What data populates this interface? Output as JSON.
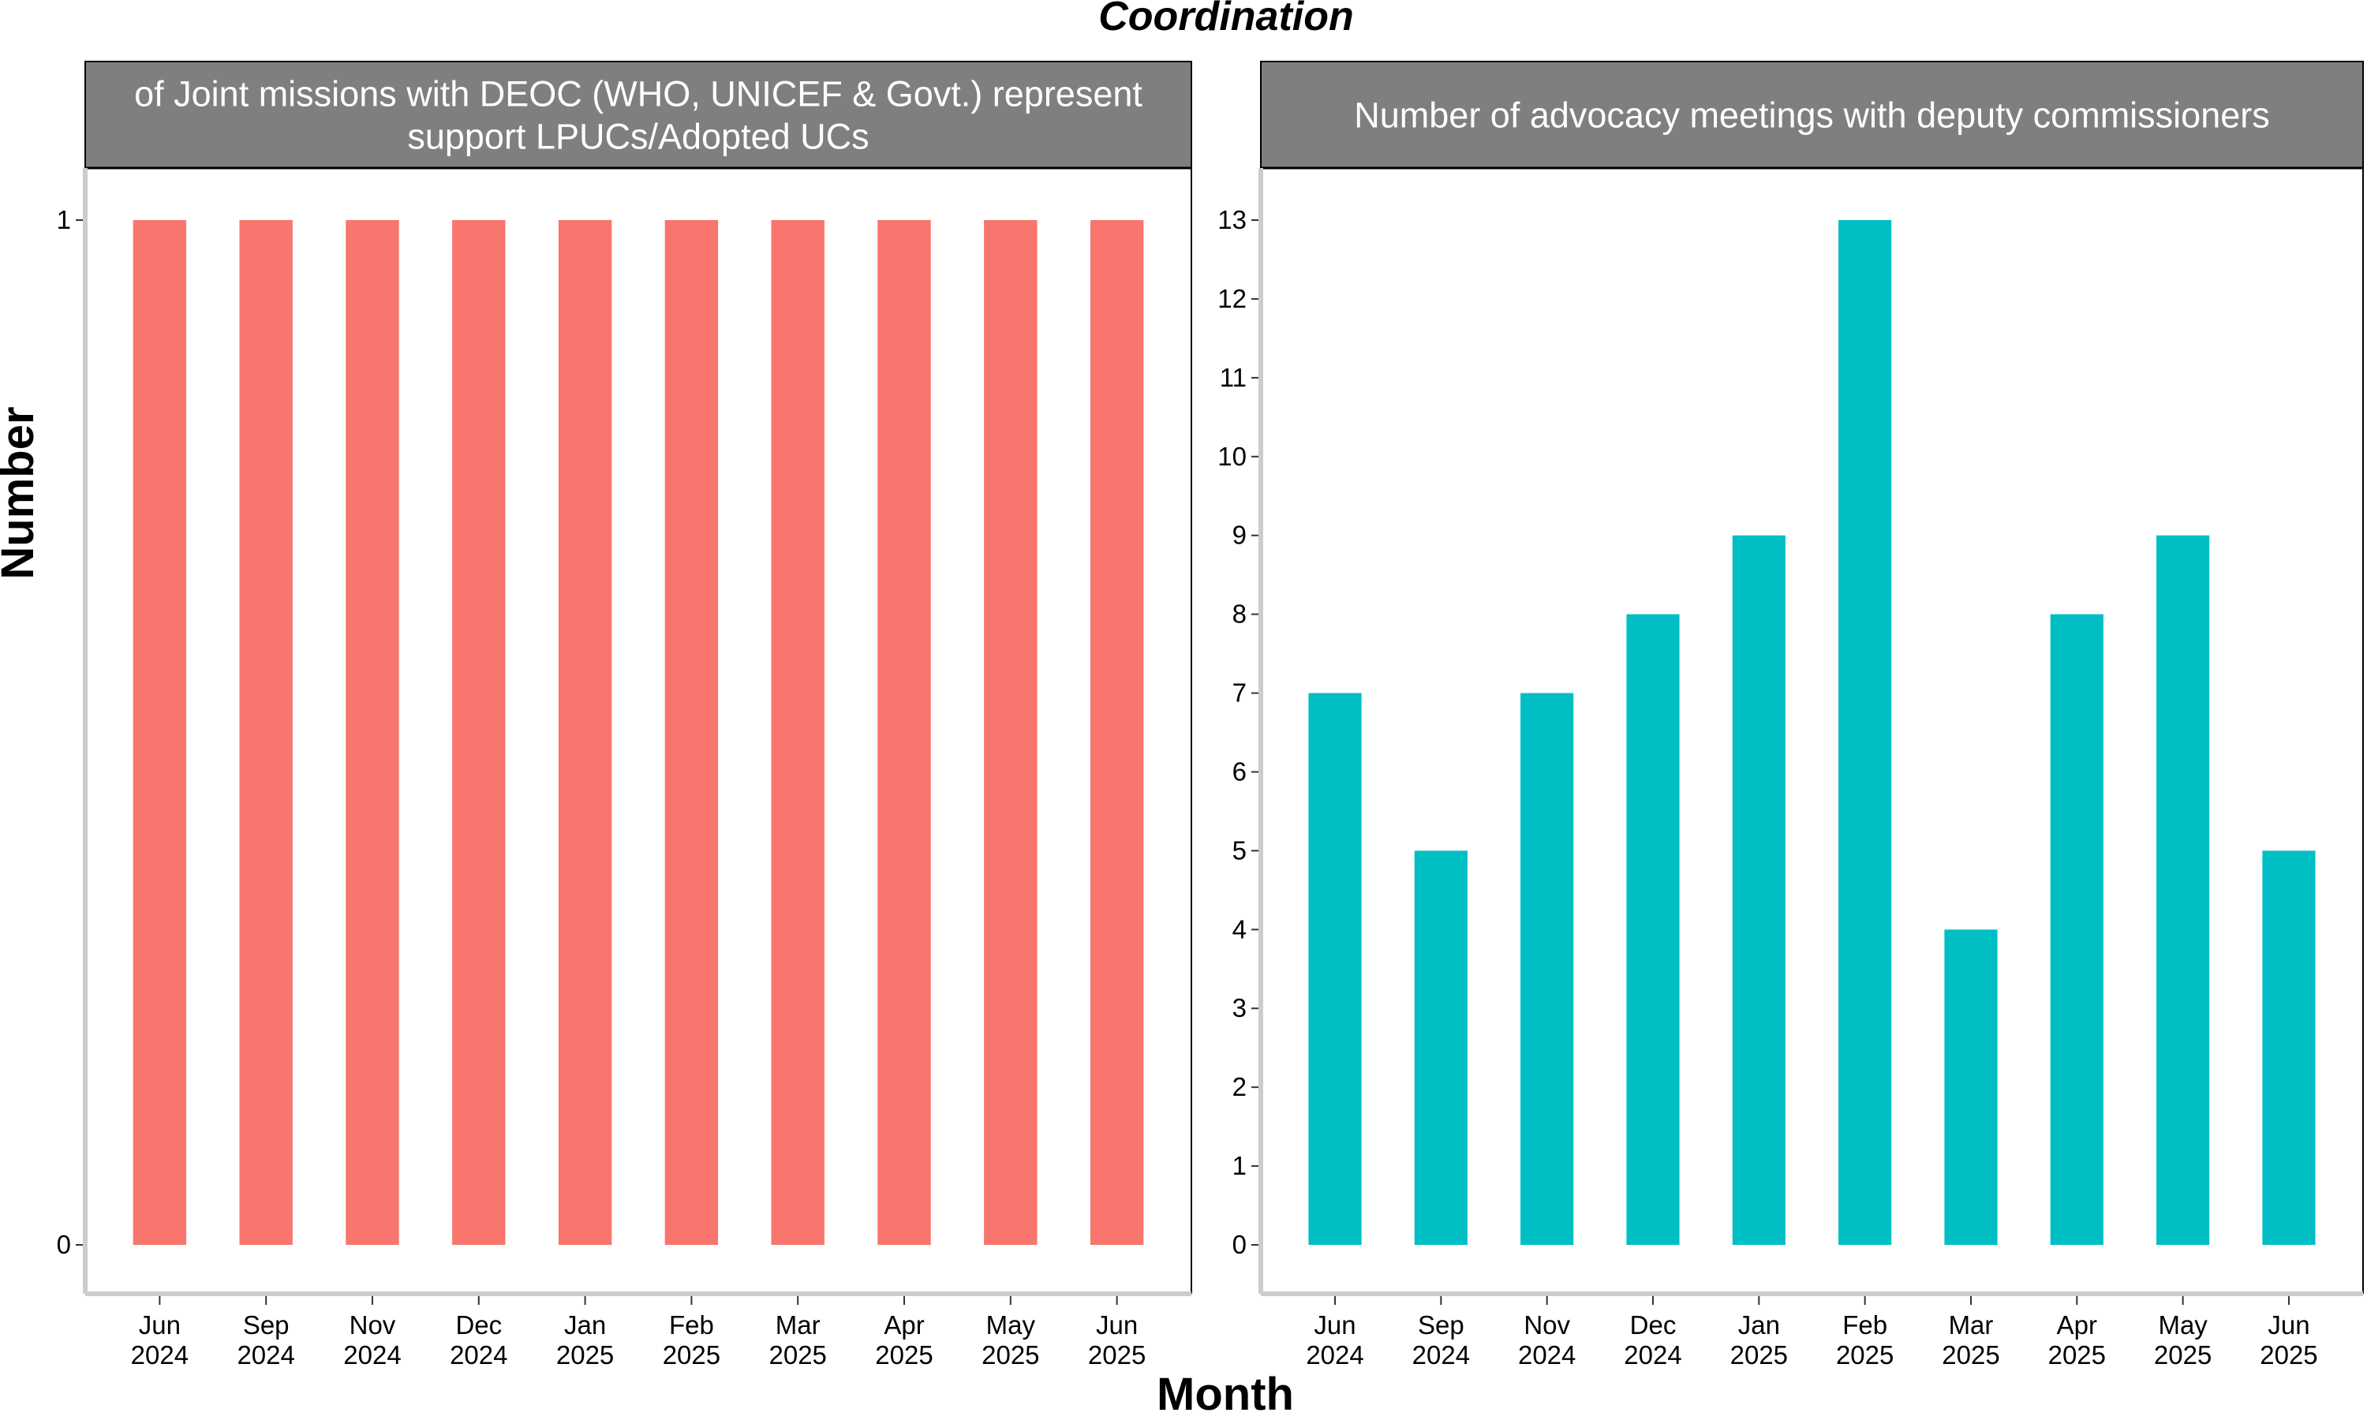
{
  "chart_data": {
    "title": "Coordination",
    "xlabel": "Month",
    "ylabel": "Number",
    "panels": [
      {
        "type": "bar",
        "title_lines": [
          "of Joint missions with DEOC (WHO, UNICEF & Govt.) represent",
          "support LPUCs/Adopted UCs"
        ],
        "color": "#F8766D",
        "categories": [
          [
            "Jun",
            "2024"
          ],
          [
            "Sep",
            "2024"
          ],
          [
            "Nov",
            "2024"
          ],
          [
            "Dec",
            "2024"
          ],
          [
            "Jan",
            "2025"
          ],
          [
            "Feb",
            "2025"
          ],
          [
            "Mar",
            "2025"
          ],
          [
            "Apr",
            "2025"
          ],
          [
            "May",
            "2025"
          ],
          [
            "Jun",
            "2025"
          ]
        ],
        "values": [
          1,
          1,
          1,
          1,
          1,
          1,
          1,
          1,
          1,
          1
        ],
        "ylim": [
          0,
          1
        ],
        "yticks": [
          0,
          1
        ]
      },
      {
        "type": "bar",
        "title_lines": [
          "Number of advocacy meetings with deputy commissioners"
        ],
        "color": "#00BFC4",
        "categories": [
          [
            "Jun",
            "2024"
          ],
          [
            "Sep",
            "2024"
          ],
          [
            "Nov",
            "2024"
          ],
          [
            "Dec",
            "2024"
          ],
          [
            "Jan",
            "2025"
          ],
          [
            "Feb",
            "2025"
          ],
          [
            "Mar",
            "2025"
          ],
          [
            "Apr",
            "2025"
          ],
          [
            "May",
            "2025"
          ],
          [
            "Jun",
            "2025"
          ]
        ],
        "values": [
          7,
          5,
          7,
          8,
          9,
          13,
          4,
          8,
          9,
          5
        ],
        "ylim": [
          0,
          13
        ],
        "yticks": [
          0,
          1,
          2,
          3,
          4,
          5,
          6,
          7,
          8,
          9,
          10,
          11,
          12,
          13
        ]
      }
    ],
    "grid": false,
    "legend": "none",
    "colors": {
      "strip_background": "#7F7F7F",
      "axis_line": "#CCCCCC",
      "panel_border": "#000000"
    }
  }
}
